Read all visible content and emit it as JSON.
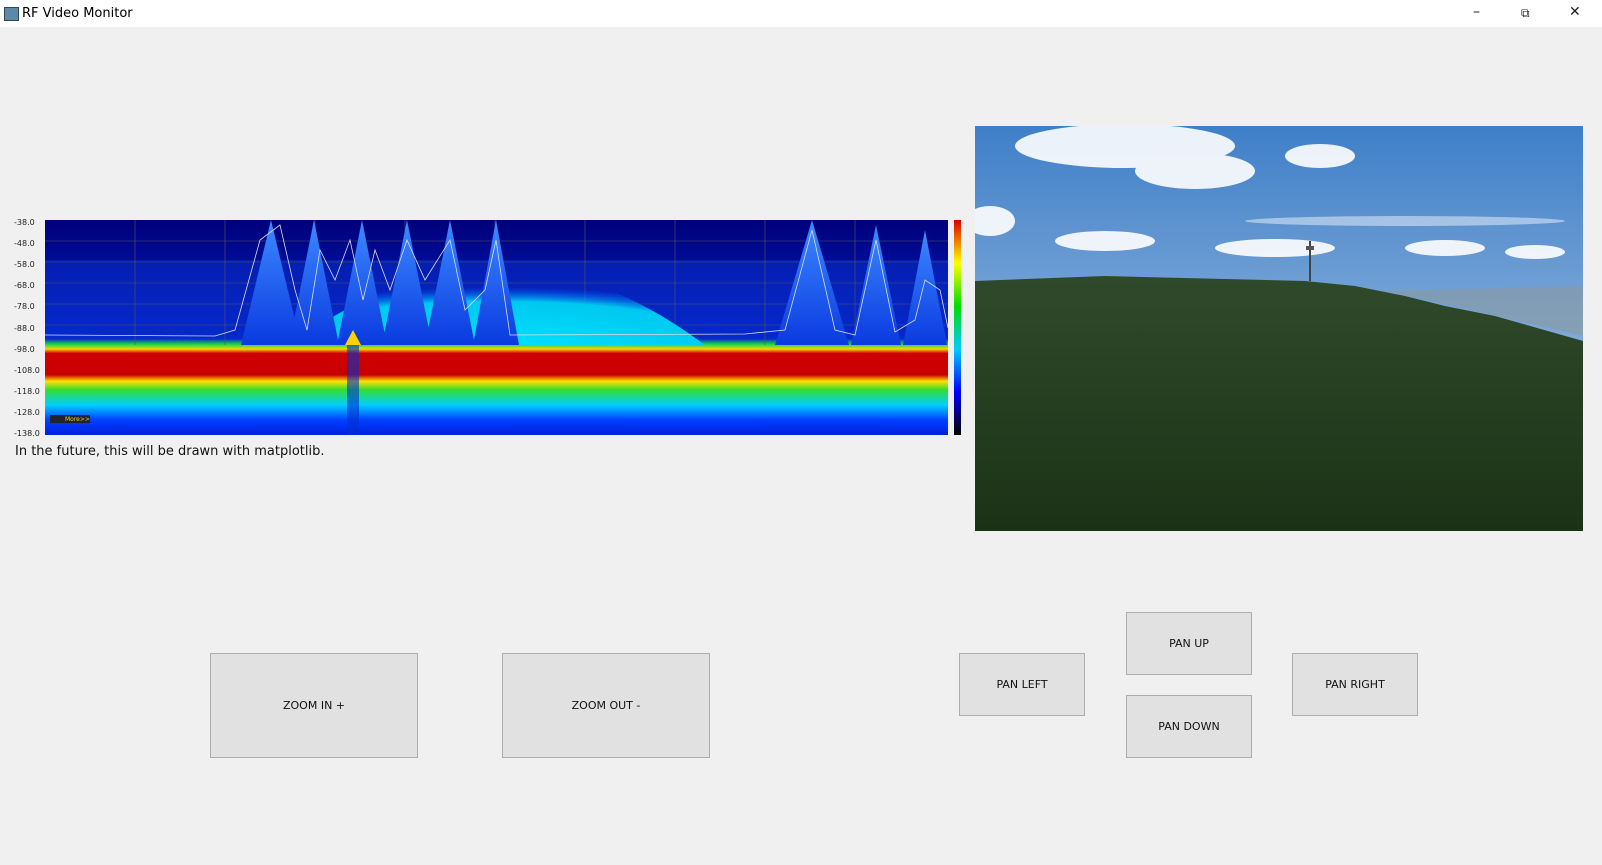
{
  "window": {
    "title": "RF Video Monitor"
  },
  "spectrum": {
    "y_labels": [
      "-38.0",
      "-48.0",
      "-58.0",
      "-68.0",
      "-78.0",
      "-88.0",
      "-98.0",
      "-108.0",
      "-118.0",
      "-128.0",
      "-138.0"
    ],
    "more_label": "More>>"
  },
  "caption": "In the future, this will be drawn with matplotlib.",
  "buttons": {
    "zoom_in": "ZOOM IN +",
    "zoom_out": "ZOOM OUT -",
    "pan_left": "PAN LEFT",
    "pan_up": "PAN UP",
    "pan_down": "PAN DOWN",
    "pan_right": "PAN RIGHT"
  }
}
